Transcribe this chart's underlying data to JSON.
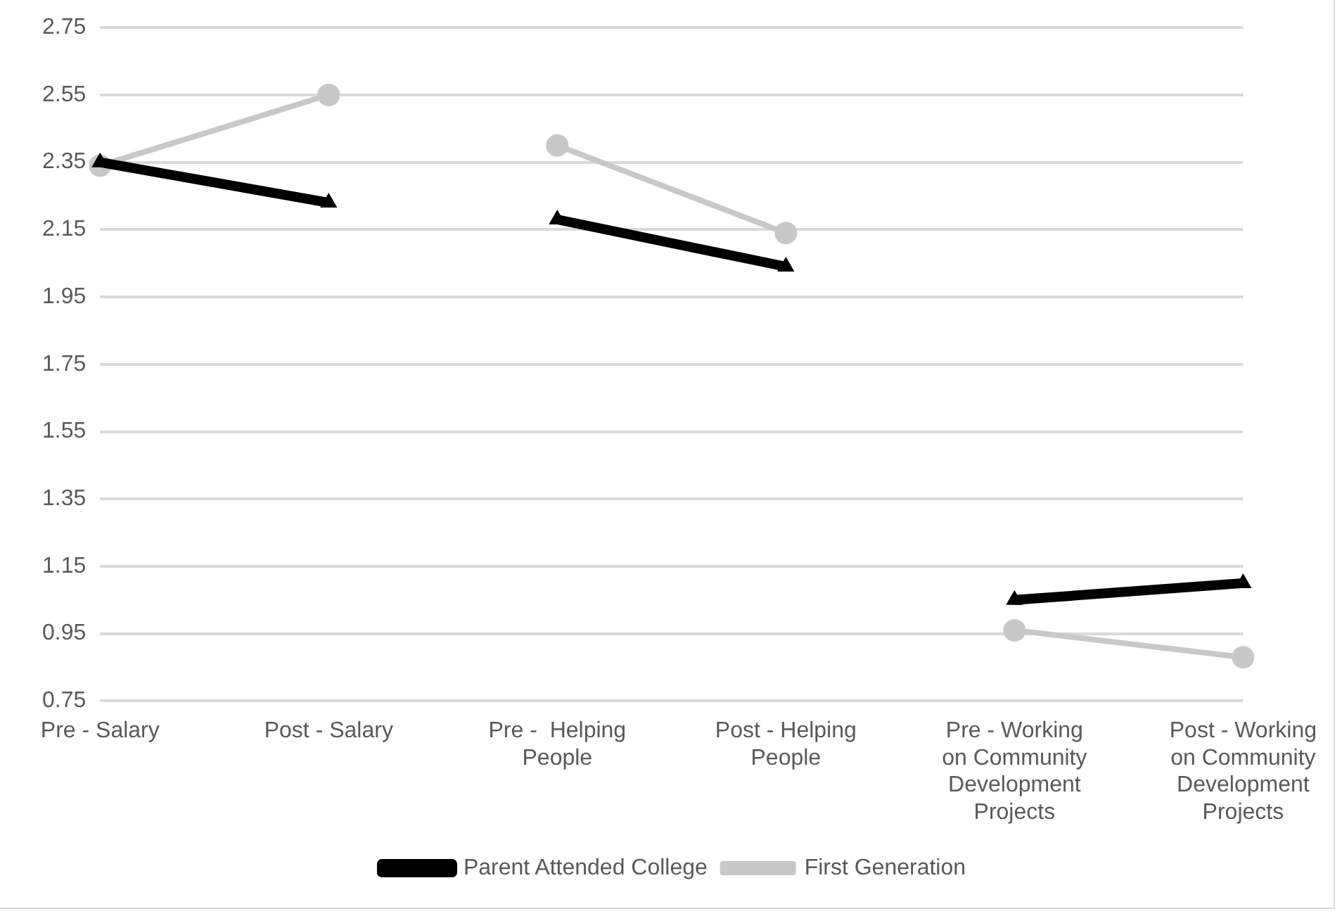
{
  "chart_data": {
    "type": "line",
    "categories": [
      "Pre - Salary",
      "Post - Salary",
      "Pre -  Helping People",
      "Post - Helping People",
      "Pre - Working on Community Development Projects",
      "Post - Working on Community Development Projects"
    ],
    "series": [
      {
        "name": "Parent Attended College",
        "color": "#000000",
        "marker": "triangle",
        "values": [
          2.35,
          2.23,
          null,
          null,
          null,
          null
        ]
      },
      {
        "color": "#000000",
        "marker": "triangle",
        "values": [
          null,
          null,
          2.18,
          2.04,
          null,
          null
        ]
      },
      {
        "color": "#000000",
        "marker": "triangle",
        "values": [
          null,
          null,
          null,
          null,
          1.05,
          1.1
        ]
      },
      {
        "name": "First Generation",
        "color": "#c8c8c8",
        "marker": "circle",
        "values": [
          2.34,
          2.55,
          null,
          null,
          null,
          null
        ]
      },
      {
        "color": "#c8c8c8",
        "marker": "circle",
        "values": [
          null,
          null,
          2.4,
          2.14,
          null,
          null
        ]
      },
      {
        "color": "#c8c8c8",
        "marker": "circle",
        "values": [
          null,
          null,
          null,
          null,
          0.96,
          0.88
        ]
      }
    ],
    "ylim": [
      0.75,
      2.75
    ],
    "yticks": [
      0.75,
      0.95,
      1.15,
      1.35,
      1.55,
      1.75,
      1.95,
      2.15,
      2.35,
      2.55,
      2.75
    ],
    "grid": "y",
    "legend": "bottom"
  }
}
